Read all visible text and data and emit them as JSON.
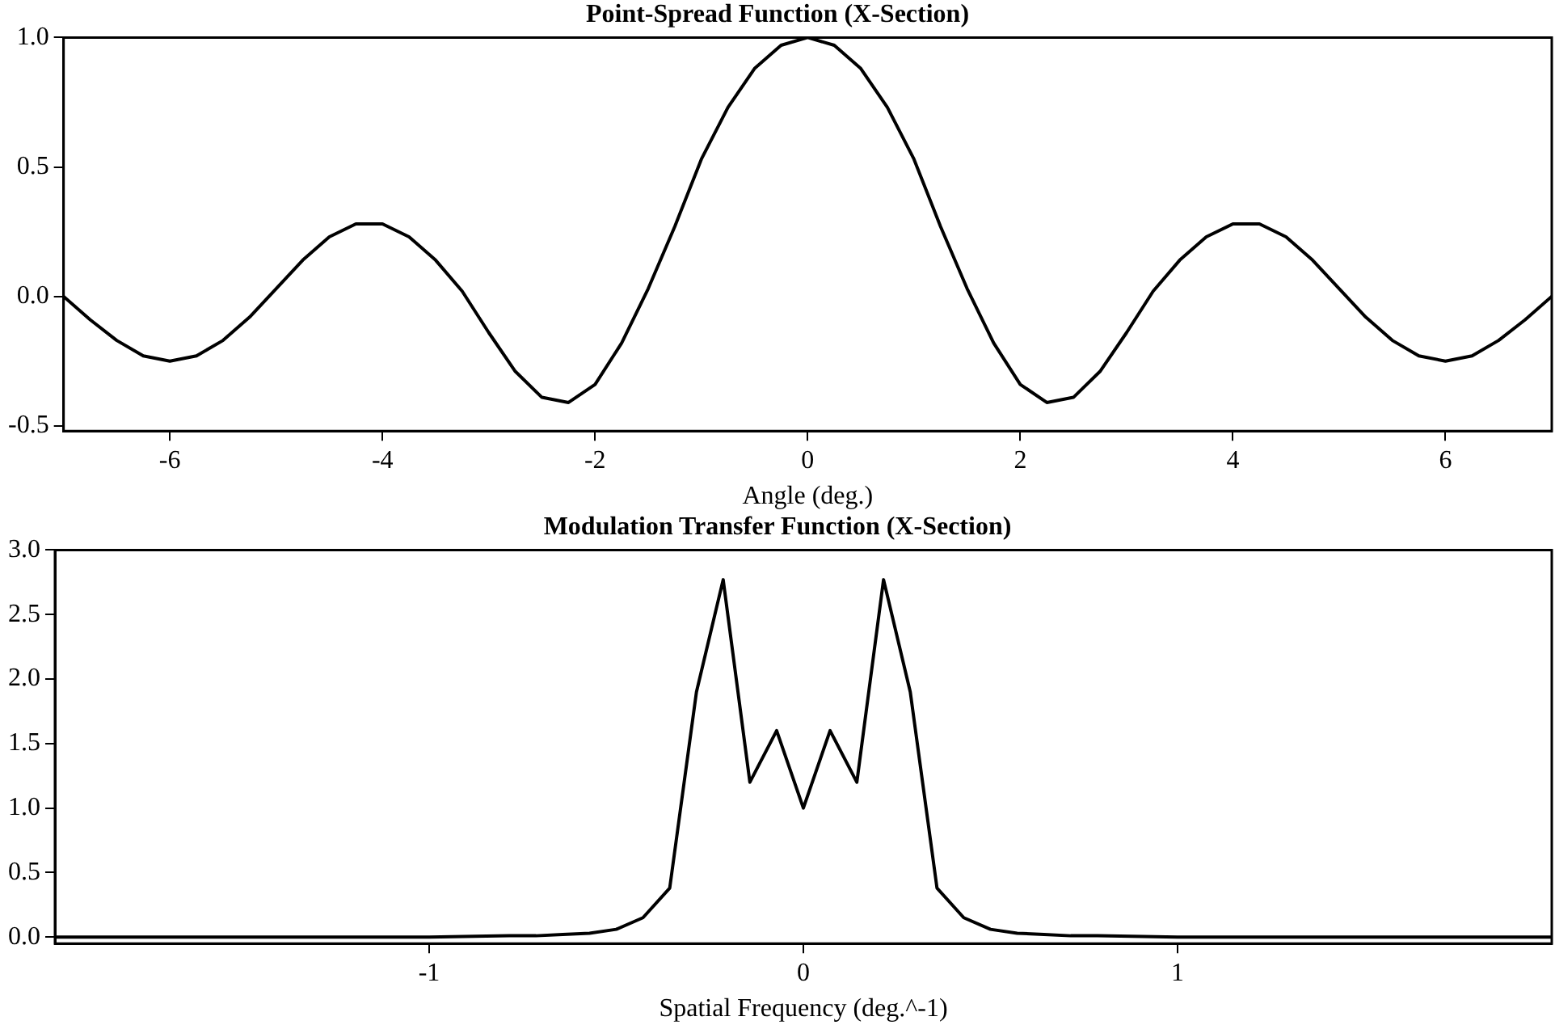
{
  "chart_data": [
    {
      "type": "line",
      "title": "Point-Spread Function (X-Section)",
      "xlabel": "Angle (deg.)",
      "grid": false,
      "legend": false,
      "marker": "none",
      "line_style": "solid",
      "x": [
        -7,
        -6.75,
        -6.5,
        -6.25,
        -6,
        -5.75,
        -5.5,
        -5.25,
        -5,
        -4.75,
        -4.5,
        -4.25,
        -4,
        -3.75,
        -3.5,
        -3.25,
        -3,
        -2.75,
        -2.5,
        -2.25,
        -2,
        -1.75,
        -1.5,
        -1.25,
        -1,
        -0.75,
        -0.5,
        -0.25,
        0,
        0.25,
        0.5,
        0.75,
        1,
        1.25,
        1.5,
        1.75,
        2,
        2.25,
        2.5,
        2.75,
        3,
        3.25,
        3.5,
        3.75,
        4,
        4.25,
        4.5,
        4.75,
        5,
        5.25,
        5.5,
        5.75,
        6,
        6.25,
        6.5,
        6.75,
        7
      ],
      "series": [
        {
          "color": "#000000",
          "values": [
            0,
            -0.09,
            -0.17,
            -0.23,
            -0.25,
            -0.23,
            -0.17,
            -0.08,
            0.03,
            0.14,
            0.23,
            0.28,
            0.28,
            0.23,
            0.14,
            0.02,
            -0.14,
            -0.29,
            -0.39,
            -0.41,
            -0.34,
            -0.18,
            0.03,
            0.27,
            0.53,
            0.73,
            0.88,
            0.97,
            1,
            0.97,
            0.88,
            0.73,
            0.53,
            0.27,
            0.03,
            -0.18,
            -0.34,
            -0.41,
            -0.39,
            -0.29,
            -0.14,
            0.02,
            0.14,
            0.23,
            0.28,
            0.28,
            0.23,
            0.14,
            0.03,
            -0.08,
            -0.17,
            -0.23,
            -0.25,
            -0.23,
            -0.17,
            -0.09,
            0
          ]
        }
      ],
      "xlim": [
        -7,
        7
      ],
      "xticks": [
        -6,
        -4,
        -2,
        0,
        2,
        4,
        6
      ],
      "ylim": [
        -0.52,
        1.0
      ],
      "yticks": [
        {
          "value": -0.5,
          "label": "-0.5"
        },
        {
          "value": 0,
          "label": "0.0"
        },
        {
          "value": 0.5,
          "label": "0.5"
        },
        {
          "value": 1,
          "label": "1.0"
        }
      ]
    },
    {
      "type": "line",
      "title": "Modulation Transfer Function (X-Section)",
      "xlabel": "Spatial Frequency (deg.^-1)",
      "grid": false,
      "legend": false,
      "marker": "none",
      "line_style": "solid",
      "x": [
        -2,
        -1.5,
        -1,
        -0.7857,
        -0.7143,
        -0.6429,
        -0.5714,
        -0.5,
        -0.4286,
        -0.3571,
        -0.2857,
        -0.2143,
        -0.1429,
        -0.0714,
        0,
        0.0714,
        0.1429,
        0.2143,
        0.2857,
        0.3571,
        0.4286,
        0.5,
        0.5714,
        0.6429,
        0.7143,
        0.7857,
        1,
        1.5,
        2
      ],
      "series": [
        {
          "color": "#000000",
          "values": [
            0,
            0,
            0,
            0.01,
            0.01,
            0.02,
            0.03,
            0.06,
            0.15,
            0.38,
            1.9,
            2.77,
            1.2,
            1.6,
            1,
            1.6,
            1.2,
            2.77,
            1.9,
            0.38,
            0.15,
            0.06,
            0.03,
            0.02,
            0.01,
            0.01,
            0,
            0,
            0
          ]
        }
      ],
      "xlim": [
        -2,
        2
      ],
      "xticks": [
        -1,
        0,
        1
      ],
      "ylim": [
        -0.05,
        3.0
      ],
      "yticks": [
        {
          "value": 0,
          "label": "0.0"
        },
        {
          "value": 0.5,
          "label": "0.5"
        },
        {
          "value": 1,
          "label": "1.0"
        },
        {
          "value": 1.5,
          "label": "1.5"
        },
        {
          "value": 2,
          "label": "2.0"
        },
        {
          "value": 2.5,
          "label": "2.5"
        },
        {
          "value": 3,
          "label": "3.0"
        }
      ]
    }
  ]
}
